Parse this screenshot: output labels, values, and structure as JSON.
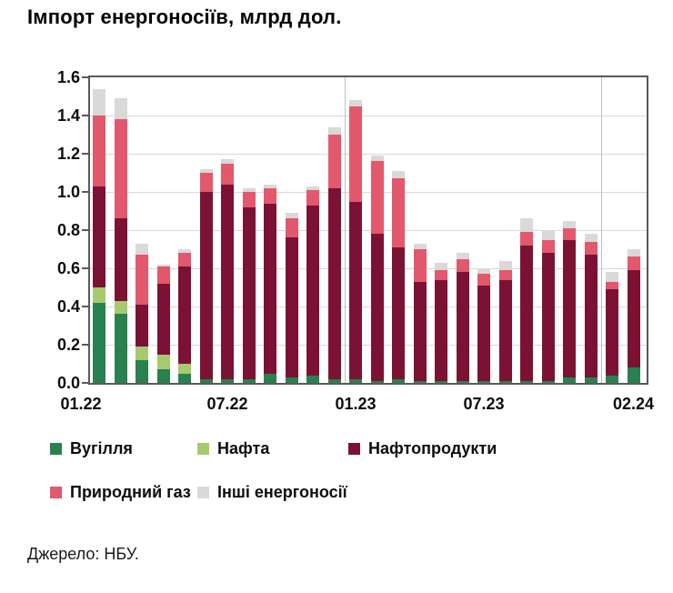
{
  "title": "Імпорт енергоносіїв, млрд дол.",
  "source": "Джерело: НБУ.",
  "colors": {
    "coal": "#28814f",
    "oil": "#a6ca6e",
    "products": "#7c1233",
    "gas": "#e2586c",
    "other": "#d9d9d9",
    "grid": "#d9d9d9",
    "year_line": "#bfbfbf",
    "border": "#595959"
  },
  "chart_data": {
    "type": "bar",
    "stacked": true,
    "title": "Імпорт енергоносіїв, млрд дол.",
    "ylabel": "млрд дол.",
    "xlabel": "",
    "categories": [
      "01.22",
      "02.22",
      "03.22",
      "04.22",
      "05.22",
      "06.22",
      "07.22",
      "08.22",
      "09.22",
      "10.22",
      "11.22",
      "12.22",
      "01.23",
      "02.23",
      "03.23",
      "04.23",
      "05.23",
      "06.23",
      "07.23",
      "08.23",
      "09.23",
      "10.23",
      "11.23",
      "12.23",
      "01.24",
      "02.24"
    ],
    "series": [
      {
        "name": "Вугілля",
        "color_key": "coal",
        "values": [
          0.42,
          0.36,
          0.12,
          0.07,
          0.05,
          0.02,
          0.02,
          0.02,
          0.05,
          0.03,
          0.04,
          0.02,
          0.02,
          0.01,
          0.02,
          0.01,
          0.01,
          0.01,
          0.01,
          0.01,
          0.01,
          0.01,
          0.03,
          0.03,
          0.04,
          0.08
        ]
      },
      {
        "name": "Нафта",
        "color_key": "oil",
        "values": [
          0.08,
          0.07,
          0.07,
          0.08,
          0.05,
          0,
          0,
          0,
          0,
          0,
          0,
          0,
          0,
          0,
          0,
          0,
          0,
          0,
          0,
          0,
          0,
          0,
          0,
          0,
          0,
          0
        ]
      },
      {
        "name": "Нафтопродукти",
        "color_key": "products",
        "values": [
          0.53,
          0.43,
          0.22,
          0.37,
          0.51,
          0.98,
          1.02,
          0.9,
          0.89,
          0.73,
          0.89,
          1.0,
          0.93,
          0.77,
          0.69,
          0.52,
          0.53,
          0.57,
          0.5,
          0.53,
          0.71,
          0.67,
          0.72,
          0.64,
          0.45,
          0.51
        ]
      },
      {
        "name": "Природний газ",
        "color_key": "gas",
        "values": [
          0.37,
          0.52,
          0.26,
          0.09,
          0.07,
          0.1,
          0.11,
          0.08,
          0.08,
          0.1,
          0.08,
          0.28,
          0.5,
          0.38,
          0.36,
          0.17,
          0.05,
          0.07,
          0.06,
          0.05,
          0.07,
          0.07,
          0.06,
          0.07,
          0.04,
          0.07
        ]
      },
      {
        "name": "Інші енергоносії",
        "color_key": "other",
        "values": [
          0.14,
          0.11,
          0.06,
          0.01,
          0.02,
          0.02,
          0.02,
          0.02,
          0.02,
          0.03,
          0.02,
          0.04,
          0.03,
          0.03,
          0.04,
          0.03,
          0.04,
          0.03,
          0.03,
          0.05,
          0.07,
          0.05,
          0.04,
          0.04,
          0.05,
          0.04
        ]
      }
    ],
    "ylim": [
      0,
      1.6
    ],
    "ytick_labels": [
      "0.0",
      "0.2",
      "0.4",
      "0.6",
      "0.8",
      "1.0",
      "1.2",
      "1.4",
      "1.6"
    ],
    "xtick_labels": [
      "01.22",
      "07.22",
      "01.23",
      "07.23",
      "02.24"
    ],
    "xtick_indices": [
      0,
      6,
      12,
      18,
      25
    ],
    "grid": "horizontal",
    "year_separators_after": [
      11,
      23
    ],
    "legend_position": "bottom"
  }
}
